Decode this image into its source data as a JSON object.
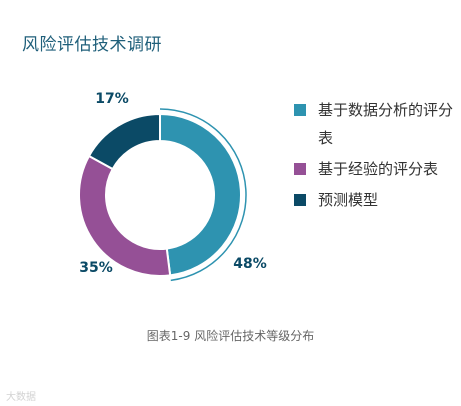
{
  "title": "风险评估技术调研",
  "caption": "图表1-9 风险评估技术等级分布",
  "watermark": "大数据",
  "chart_data": {
    "type": "pie",
    "donut": true,
    "categories": [
      "基于数据分析的评分表",
      "基于经验的评分表",
      "预测模型"
    ],
    "values": [
      48,
      35,
      17
    ],
    "labels": [
      "48%",
      "35%",
      "17%"
    ],
    "colors": [
      "#2e93b0",
      "#955096",
      "#0b4a66"
    ],
    "legend_position": "right"
  }
}
